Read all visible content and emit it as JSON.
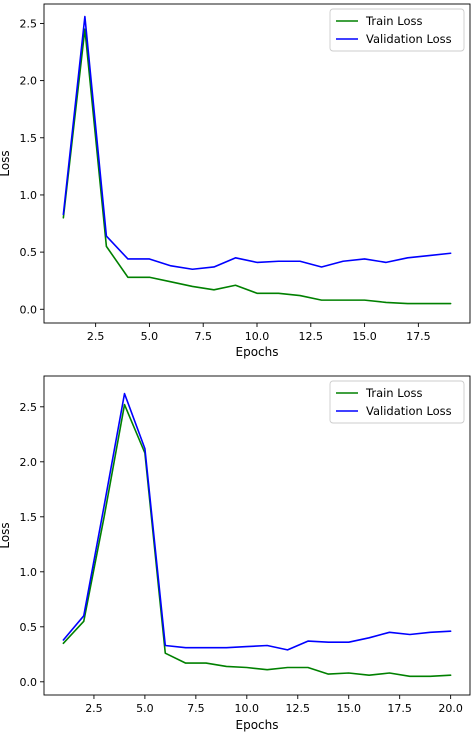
{
  "chart_data": [
    {
      "type": "line",
      "title": "",
      "xlabel": "Epochs",
      "ylabel": "Loss",
      "xlim": [
        0.1,
        19.9
      ],
      "ylim": [
        -0.12,
        2.67
      ],
      "xticks": [
        2.5,
        5.0,
        7.5,
        10.0,
        12.5,
        15.0,
        17.5
      ],
      "xtick_labels": [
        "2.5",
        "5.0",
        "7.5",
        "10.0",
        "12.5",
        "15.0",
        "17.5"
      ],
      "yticks": [
        0.0,
        0.5,
        1.0,
        1.5,
        2.0,
        2.5
      ],
      "ytick_labels": [
        "0.0",
        "0.5",
        "1.0",
        "1.5",
        "2.0",
        "2.5"
      ],
      "grid": false,
      "legend": "top-right",
      "series": [
        {
          "name": "Train Loss",
          "color": "#008000",
          "x": [
            1,
            2,
            3,
            4,
            5,
            6,
            7,
            8,
            9,
            10,
            11,
            12,
            13,
            14,
            15,
            16,
            17,
            18,
            19
          ],
          "y": [
            0.8,
            2.45,
            0.55,
            0.28,
            0.28,
            0.24,
            0.2,
            0.17,
            0.21,
            0.14,
            0.14,
            0.12,
            0.08,
            0.08,
            0.08,
            0.06,
            0.05,
            0.05,
            0.05
          ]
        },
        {
          "name": "Validation Loss",
          "color": "#0000ff",
          "x": [
            1,
            2,
            3,
            4,
            5,
            6,
            7,
            8,
            9,
            10,
            11,
            12,
            13,
            14,
            15,
            16,
            17,
            18,
            19
          ],
          "y": [
            0.83,
            2.56,
            0.64,
            0.44,
            0.44,
            0.38,
            0.35,
            0.37,
            0.45,
            0.41,
            0.42,
            0.42,
            0.37,
            0.42,
            0.44,
            0.41,
            0.45,
            0.47,
            0.49
          ]
        }
      ]
    },
    {
      "type": "line",
      "title": "",
      "xlabel": "Epochs",
      "ylabel": "Loss",
      "xlim": [
        0.05,
        20.95
      ],
      "ylim": [
        -0.12,
        2.78
      ],
      "xticks": [
        2.5,
        5.0,
        7.5,
        10.0,
        12.5,
        15.0,
        17.5,
        20.0
      ],
      "xtick_labels": [
        "2.5",
        "5.0",
        "7.5",
        "10.0",
        "12.5",
        "15.0",
        "17.5",
        "20.0"
      ],
      "yticks": [
        0.0,
        0.5,
        1.0,
        1.5,
        2.0,
        2.5
      ],
      "ytick_labels": [
        "0.0",
        "0.5",
        "1.0",
        "1.5",
        "2.0",
        "2.5"
      ],
      "grid": false,
      "legend": "top-right",
      "series": [
        {
          "name": "Train Loss",
          "color": "#008000",
          "x": [
            1,
            2,
            3,
            4,
            5,
            6,
            7,
            8,
            9,
            10,
            11,
            12,
            13,
            14,
            15,
            16,
            17,
            18,
            19,
            20
          ],
          "y": [
            0.35,
            0.55,
            1.5,
            2.52,
            2.08,
            0.26,
            0.17,
            0.17,
            0.14,
            0.13,
            0.11,
            0.13,
            0.13,
            0.07,
            0.08,
            0.06,
            0.08,
            0.05,
            0.05,
            0.06
          ]
        },
        {
          "name": "Validation Loss",
          "color": "#0000ff",
          "x": [
            1,
            2,
            3,
            4,
            5,
            6,
            7,
            8,
            9,
            10,
            11,
            12,
            13,
            14,
            15,
            16,
            17,
            18,
            19,
            20
          ],
          "y": [
            0.38,
            0.6,
            1.6,
            2.62,
            2.12,
            0.33,
            0.31,
            0.31,
            0.31,
            0.32,
            0.33,
            0.29,
            0.37,
            0.36,
            0.36,
            0.4,
            0.45,
            0.43,
            0.45,
            0.46
          ]
        }
      ]
    }
  ]
}
